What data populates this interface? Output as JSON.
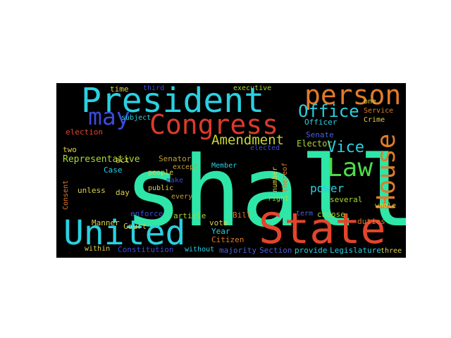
{
  "wordcloud": {
    "background": "#000000",
    "words": [
      {
        "text": "shall",
        "color": "#2ee6a8"
      },
      {
        "text": "State",
        "color": "#e2452b"
      },
      {
        "text": "United",
        "color": "#2ad0e0"
      },
      {
        "text": "President",
        "color": "#2ad0e0"
      },
      {
        "text": "person",
        "color": "#e07b2b"
      },
      {
        "text": "Congress",
        "color": "#d93b2a"
      },
      {
        "text": "House",
        "color": "#e07b2b"
      },
      {
        "text": "Law",
        "color": "#4ed94a"
      },
      {
        "text": "may",
        "color": "#3b4bd8"
      },
      {
        "text": "Office",
        "color": "#2ad0e0"
      },
      {
        "text": "Amendment",
        "color": "#c8d832"
      },
      {
        "text": "Vice",
        "color": "#2ad0e0"
      },
      {
        "text": "power",
        "color": "#2ad0e0"
      },
      {
        "text": "Representative",
        "color": "#a8d832"
      },
      {
        "text": "Senator",
        "color": "#c0a030"
      },
      {
        "text": "Senate",
        "color": "#4a60d8"
      },
      {
        "text": "Elector",
        "color": "#a8d832"
      },
      {
        "text": "Officer",
        "color": "#2ad0e0"
      },
      {
        "text": "several",
        "color": "#a8d832"
      },
      {
        "text": "choose",
        "color": "#a8d832"
      },
      {
        "text": "duties",
        "color": "#e07b2b"
      },
      {
        "text": "Bill",
        "color": "#e07b2b"
      },
      {
        "text": "vote",
        "color": "#e0d048"
      },
      {
        "text": "Citizen",
        "color": "#e07b2b"
      },
      {
        "text": "Year",
        "color": "#2ad0e0"
      },
      {
        "text": "Member",
        "color": "#2ad0e0"
      },
      {
        "text": "people",
        "color": "#e0d048"
      },
      {
        "text": "public",
        "color": "#e0d048"
      },
      {
        "text": "every",
        "color": "#c0a030"
      },
      {
        "text": "article",
        "color": "#a8d832"
      },
      {
        "text": "enforce",
        "color": "#3b4bd8"
      },
      {
        "text": "Manner",
        "color": "#e0d048"
      },
      {
        "text": "within",
        "color": "#e0d048"
      },
      {
        "text": "Constitution",
        "color": "#3b4bd8"
      },
      {
        "text": "without",
        "color": "#2ad0e0"
      },
      {
        "text": "majority",
        "color": "#4a60d8"
      },
      {
        "text": "Section",
        "color": "#4a60d8"
      },
      {
        "text": "provide",
        "color": "#2ad0e0"
      },
      {
        "text": "Legislature",
        "color": "#2ad0e0"
      },
      {
        "text": "three",
        "color": "#e0d048"
      },
      {
        "text": "unless",
        "color": "#e0d048"
      },
      {
        "text": "day",
        "color": "#e0d048"
      },
      {
        "text": "Case",
        "color": "#2ad0e0"
      },
      {
        "text": "Court",
        "color": "#e0d048"
      },
      {
        "text": "election",
        "color": "#e2452b"
      },
      {
        "text": "two",
        "color": "#e0d048"
      },
      {
        "text": "time",
        "color": "#e0d048"
      },
      {
        "text": "third",
        "color": "#3b4bd8"
      },
      {
        "text": "executive",
        "color": "#a8d832"
      },
      {
        "text": "Service",
        "color": "#e07b2b"
      },
      {
        "text": "Crime",
        "color": "#e0d048"
      },
      {
        "text": "one",
        "color": "#e0d048"
      },
      {
        "text": "number",
        "color": "#e0d048"
      },
      {
        "text": "thereof",
        "color": "#e07b2b"
      },
      {
        "text": "elected",
        "color": "#3b4bd8"
      },
      {
        "text": "right",
        "color": "#a8d832"
      },
      {
        "text": "whole",
        "color": "#e0d048"
      },
      {
        "text": "make",
        "color": "#3b4bd8"
      },
      {
        "text": "act",
        "color": "#e0d048"
      },
      {
        "text": "except",
        "color": "#c0a030"
      },
      {
        "text": "Consent",
        "color": "#e07b2b"
      },
      {
        "text": "subject",
        "color": "#2ad0e0"
      },
      {
        "text": "term",
        "color": "#4a60d8"
      }
    ]
  }
}
